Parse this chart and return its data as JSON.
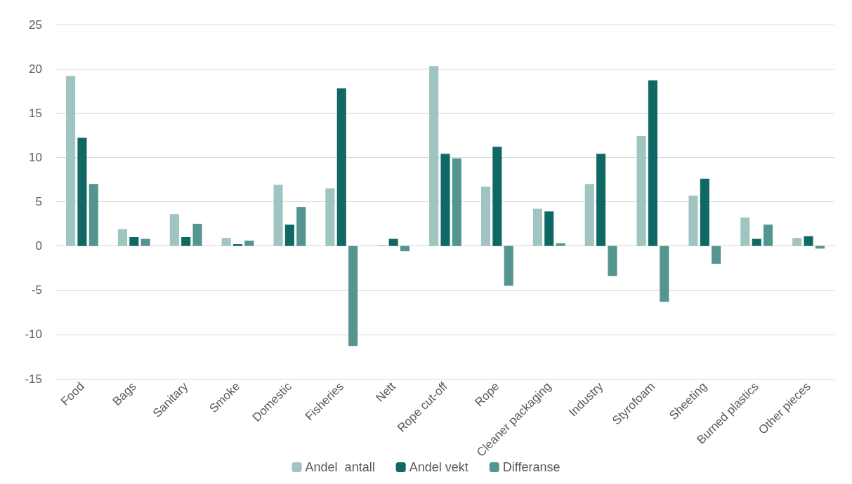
{
  "chart_data": {
    "type": "bar",
    "categories": [
      "Food",
      "Bags",
      "Sanitary",
      "Smoke",
      "Domestic",
      "Fisheries",
      "Nett",
      "Rope cut-off",
      "Rope",
      "Cleaner packaging",
      "Industry",
      "Styrofoam",
      "Sheeting",
      "Burned plastics",
      "Other pieces"
    ],
    "series": [
      {
        "name": "Andel  antall",
        "color": "#9fc4c1",
        "values": [
          19.2,
          1.9,
          3.6,
          0.9,
          6.9,
          6.5,
          0.1,
          20.3,
          6.7,
          4.2,
          7.0,
          12.4,
          5.7,
          3.2,
          0.9
        ]
      },
      {
        "name": "Andel vekt",
        "color": "#0f6863",
        "values": [
          12.2,
          1.0,
          1.0,
          0.2,
          2.4,
          17.8,
          0.8,
          10.4,
          11.2,
          3.9,
          10.4,
          18.7,
          7.6,
          0.8,
          1.1
        ]
      },
      {
        "name": "Differanse",
        "color": "#54958f",
        "values": [
          7.0,
          0.8,
          2.5,
          0.6,
          4.4,
          -11.3,
          -0.6,
          9.9,
          -4.5,
          0.3,
          -3.4,
          -6.3,
          -2.0,
          2.4,
          -0.3
        ]
      }
    ],
    "ylim": [
      -15,
      25
    ],
    "yticks": [
      -15,
      -10,
      -5,
      0,
      5,
      10,
      15,
      20,
      25
    ],
    "grid": "y",
    "legend": "bottom"
  }
}
